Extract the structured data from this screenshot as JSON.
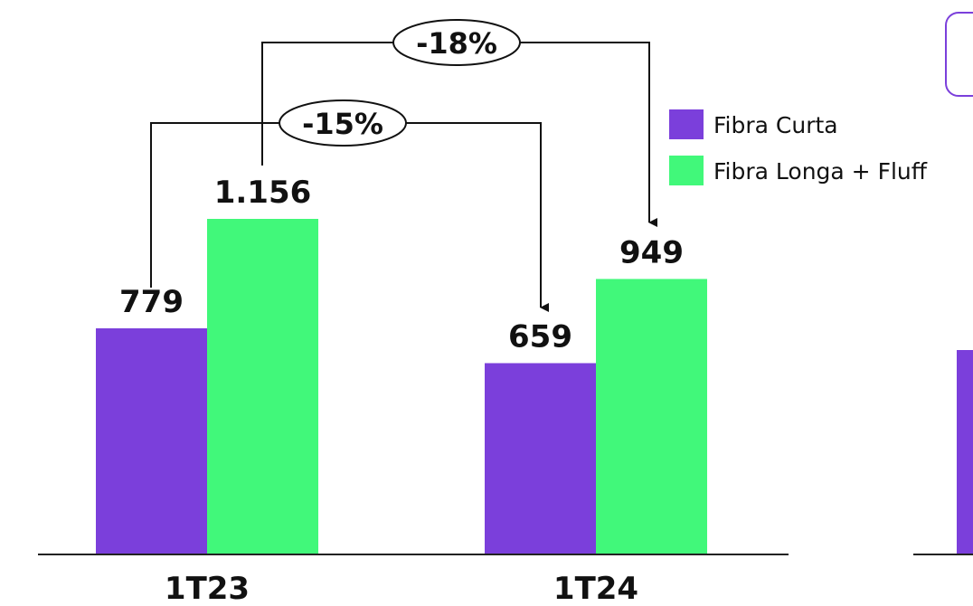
{
  "colors": {
    "series1": "#7B3FDB",
    "series2": "#41F87A",
    "axis": "#222222",
    "frame": "#7B3FDB"
  },
  "chart_data": {
    "type": "bar",
    "categories": [
      "1T23",
      "1T24"
    ],
    "series": [
      {
        "name": "Fibra Curta",
        "values": [
          779,
          659
        ],
        "labels": [
          "779",
          "659"
        ]
      },
      {
        "name": "Fibra Longa + Fluff",
        "values": [
          1156,
          949
        ],
        "labels": [
          "1.156",
          "949"
        ]
      }
    ],
    "ylim": [
      0,
      1200
    ],
    "grid": false,
    "legend_position": "top-right",
    "annotations": [
      {
        "text": "-15%",
        "series": "Fibra Curta",
        "from": "1T23",
        "to": "1T24"
      },
      {
        "text": "-18%",
        "series": "Fibra Longa + Fluff",
        "from": "1T23",
        "to": "1T24"
      }
    ]
  }
}
